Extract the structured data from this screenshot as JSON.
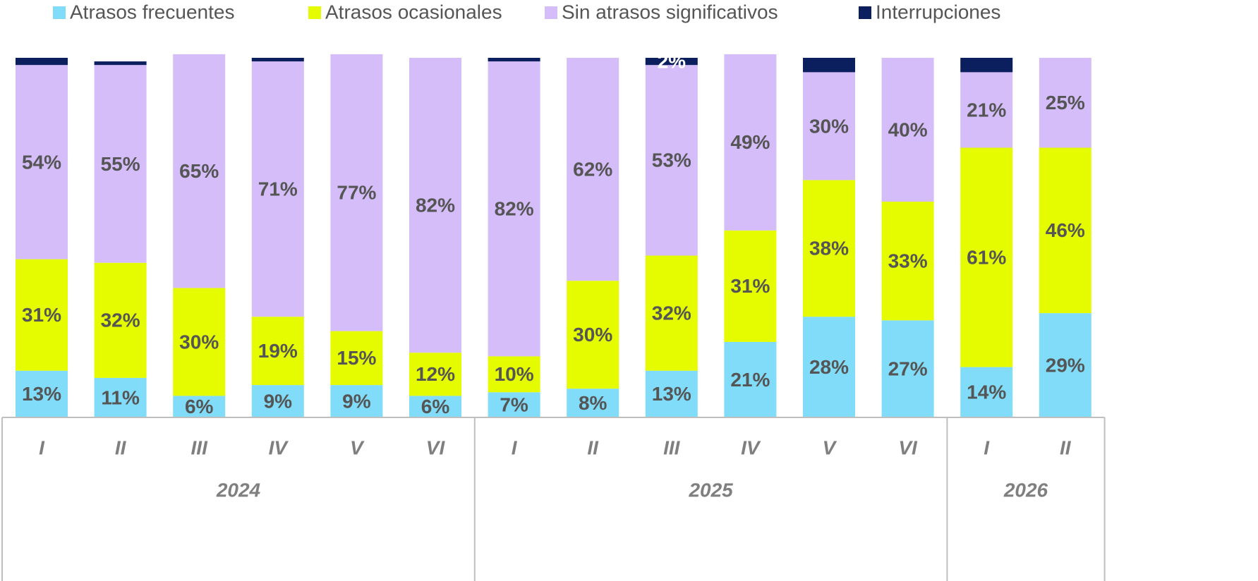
{
  "chart_data": {
    "type": "stacked_bar",
    "groups": [
      {
        "name": "2024",
        "categories": [
          "I",
          "II",
          "III",
          "IV",
          "V",
          "VI"
        ]
      },
      {
        "name": "2025",
        "categories": [
          "I",
          "II",
          "III",
          "IV",
          "V",
          "VI"
        ]
      },
      {
        "name": "2026",
        "categories": [
          "I",
          "II"
        ]
      }
    ],
    "series": [
      {
        "name": "Atrasos frecuentes",
        "color": "#80dcf8",
        "values": [
          13,
          11,
          6,
          9,
          9,
          6,
          7,
          8,
          13,
          21,
          28,
          27,
          14,
          29
        ],
        "value_labels": [
          "13%",
          "11%",
          "6%",
          "9%",
          "9%",
          "6%",
          "7%",
          "8%",
          "13%",
          "21%",
          "28%",
          "27%",
          "14%",
          "29%"
        ]
      },
      {
        "name": "Atrasos ocasionales",
        "color": "#e4fb00",
        "values": [
          31,
          32,
          30,
          19,
          15,
          12,
          10,
          30,
          32,
          31,
          38,
          33,
          61,
          46
        ],
        "value_labels": [
          "31%",
          "32%",
          "30%",
          "19%",
          "15%",
          "12%",
          "10%",
          "30%",
          "32%",
          "31%",
          "38%",
          "33%",
          "61%",
          "46%"
        ]
      },
      {
        "name": "Sin atrasos significativos",
        "color": "#d5bdfa",
        "values": [
          54,
          55,
          65,
          71,
          77,
          82,
          82,
          62,
          53,
          49,
          30,
          40,
          21,
          25
        ],
        "value_labels": [
          "54%",
          "55%",
          "65%",
          "71%",
          "77%",
          "82%",
          "82%",
          "62%",
          "53%",
          "49%",
          "30%",
          "40%",
          "21%",
          "25%"
        ]
      },
      {
        "name": "Interrupciones",
        "color": "#0b1f5e",
        "values": [
          2,
          1,
          0,
          1,
          0,
          0,
          1,
          0,
          2,
          0,
          4,
          0,
          4,
          0
        ],
        "value_labels": [
          null,
          null,
          null,
          null,
          null,
          null,
          null,
          null,
          "2%",
          null,
          null,
          null,
          null,
          null
        ]
      }
    ]
  }
}
